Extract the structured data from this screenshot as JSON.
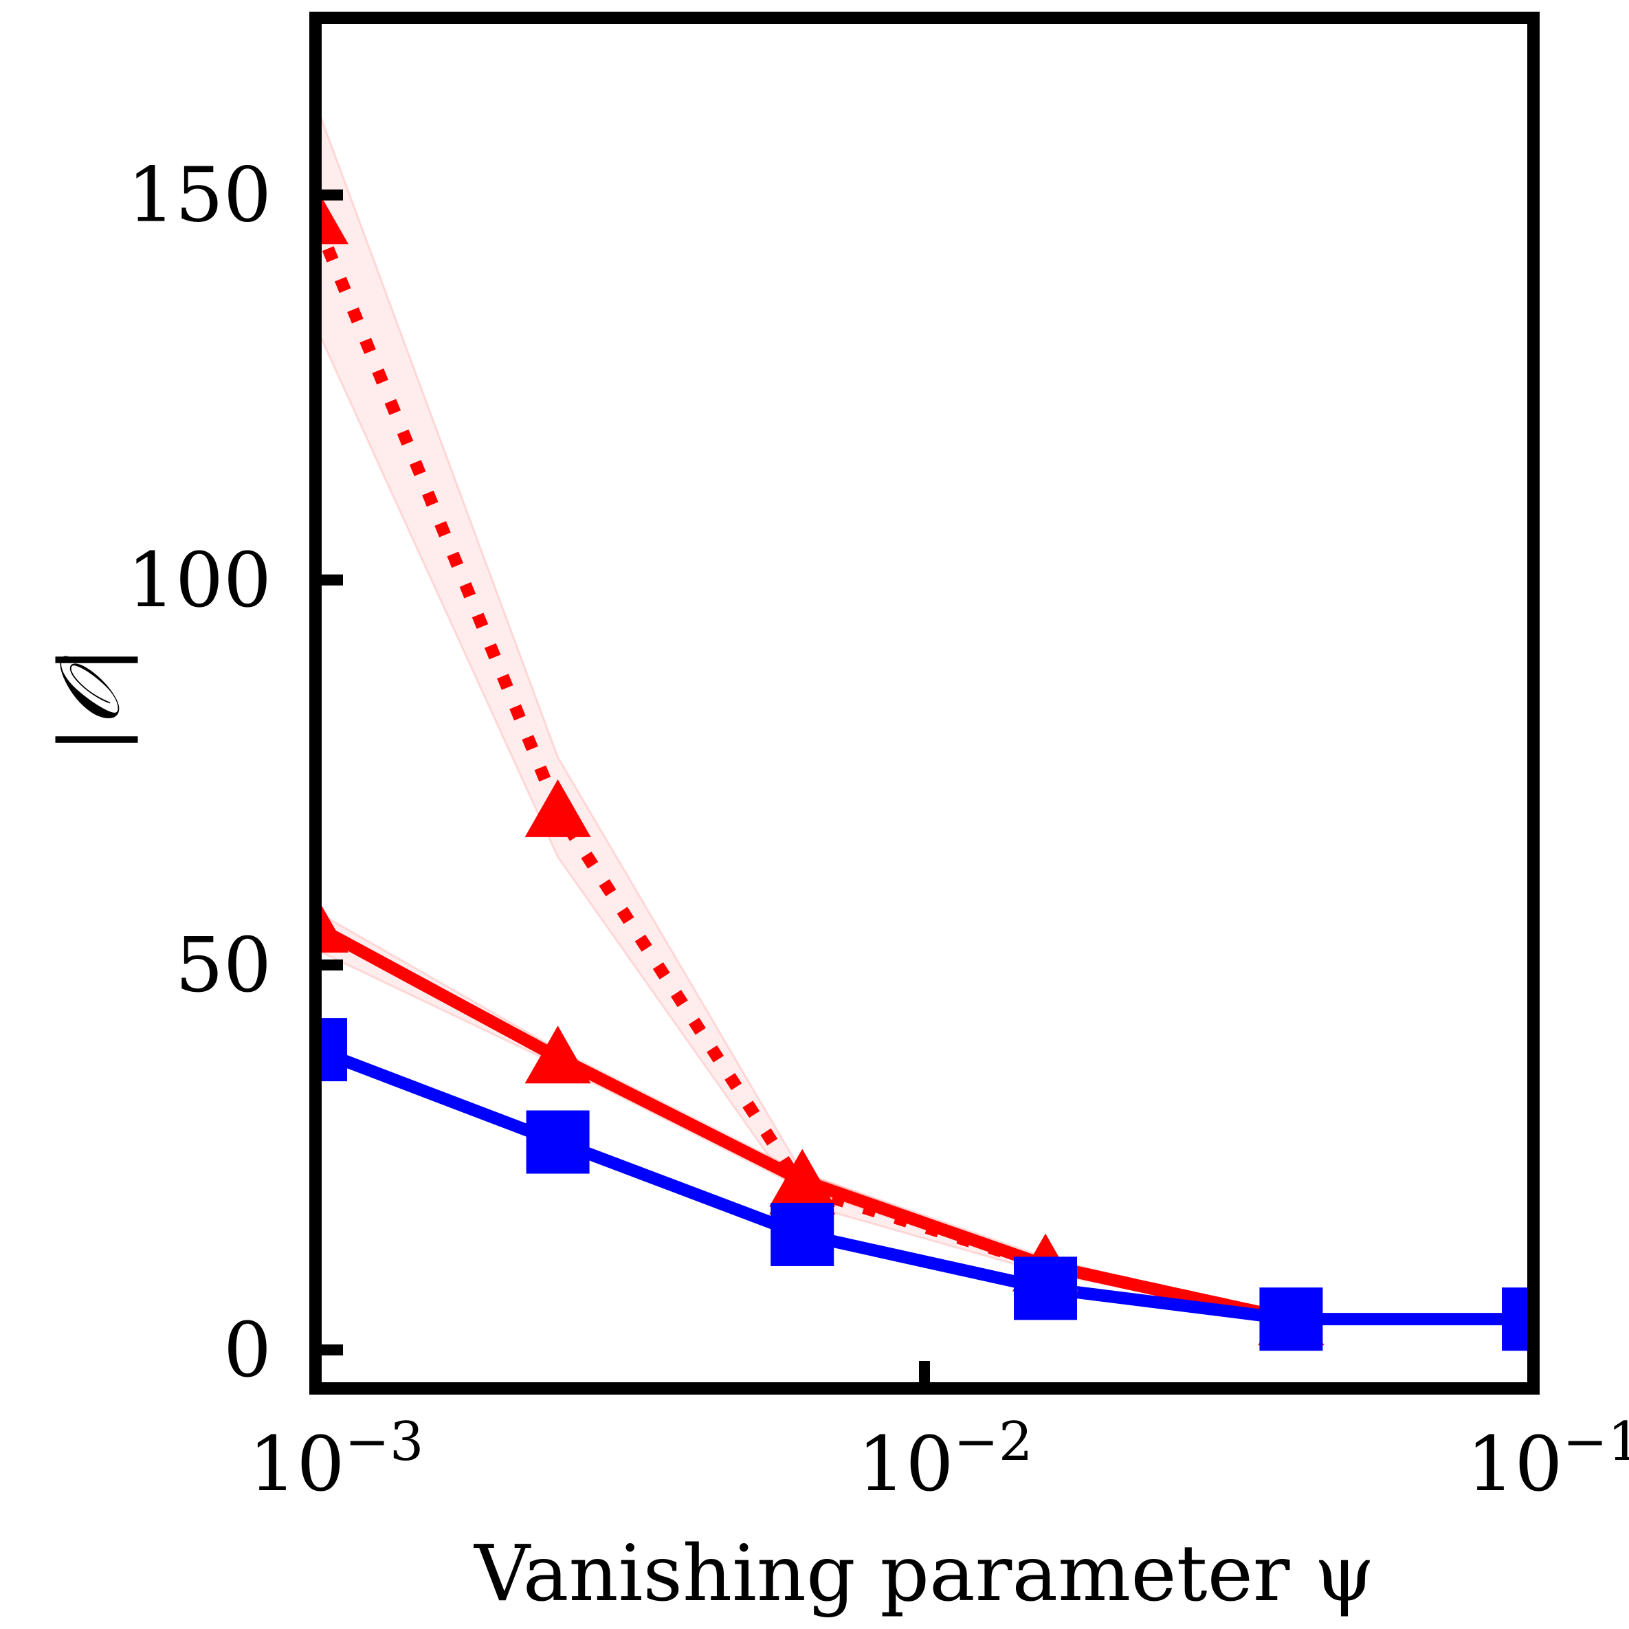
{
  "chart_data": {
    "type": "line",
    "title": "",
    "xlabel": "Vanishing parameter ψ",
    "ylabel": "|𝒪|",
    "xscale": "log",
    "xlim": [
      0.001,
      0.1
    ],
    "ylim": [
      -5,
      173
    ],
    "grid": false,
    "legend": "none",
    "x_ticks": [
      {
        "value": 0.001,
        "base": "10",
        "exp": "−3"
      },
      {
        "value": 0.01,
        "base": "10",
        "exp": "−2"
      },
      {
        "value": 0.1,
        "base": "10",
        "exp": "−1"
      }
    ],
    "y_ticks": [
      {
        "value": 0,
        "label": "0"
      },
      {
        "value": 50,
        "label": "50"
      },
      {
        "value": 100,
        "label": "100"
      },
      {
        "value": 150,
        "label": "150"
      }
    ],
    "series": [
      {
        "color": "#ff0000",
        "line": "dotted",
        "marker": "triangle",
        "x": [
          0.001,
          0.0025,
          0.0063,
          0.0158,
          0.04
        ],
        "y": [
          147,
          70,
          21,
          11,
          4
        ],
        "band_lower": [
          133,
          64,
          19,
          10,
          4
        ],
        "band_upper": [
          162,
          77,
          23,
          12,
          4
        ]
      },
      {
        "color": "#ff0000",
        "line": "solid",
        "marker": "triangle",
        "x": [
          0.001,
          0.0025,
          0.0063,
          0.0158,
          0.04
        ],
        "y": [
          55,
          38,
          22,
          11,
          4
        ],
        "band_lower": [
          52,
          37,
          21,
          10.5,
          4
        ],
        "band_upper": [
          57,
          39,
          23,
          11.5,
          4
        ]
      },
      {
        "color": "#0000ff",
        "line": "solid",
        "marker": "square",
        "x": [
          0.001,
          0.0025,
          0.0063,
          0.0158,
          0.04,
          0.1
        ],
        "y": [
          39,
          27,
          15,
          8,
          4,
          4
        ],
        "band_lower": [
          38.5,
          26.5,
          14.5,
          7.8,
          4,
          4
        ],
        "band_upper": [
          39.5,
          27.5,
          15.5,
          8.2,
          4,
          4
        ]
      }
    ]
  }
}
